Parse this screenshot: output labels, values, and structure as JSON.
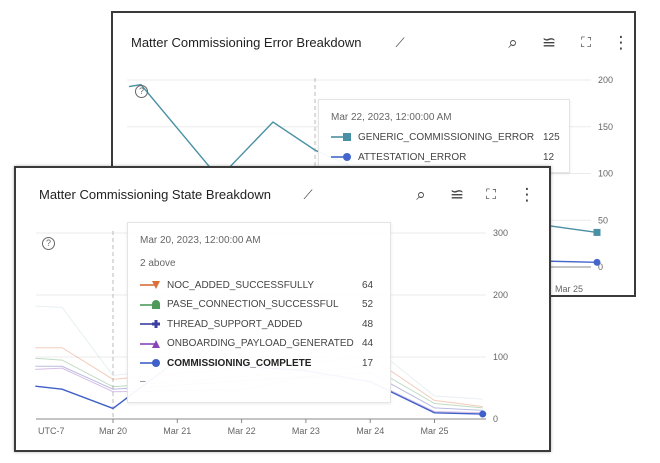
{
  "colors": {
    "generic": "#4a90a4",
    "attestation": "#4466cc",
    "noc": "#d9703a",
    "pase": "#4e9a5a",
    "thread": "#3a3fa0",
    "onboarding": "#8a44b8",
    "complete": "#3f60c8",
    "faint": "#b9d3d9"
  },
  "error_card": {
    "title": "Matter Commissioning Error Breakdown",
    "icons": [
      "chart-explore-icon",
      "reset-zoom-icon",
      "legend-icon",
      "fullscreen-icon",
      "more-vert-icon"
    ],
    "tooltip": {
      "date": "Mar 22, 2023, 12:00:00 AM",
      "rows": [
        {
          "label": "GENERIC_COMMISSIONING_ERROR",
          "value": "125",
          "marker": "square",
          "color": "#4a90a4"
        },
        {
          "label": "ATTESTATION_ERROR",
          "value": "12",
          "marker": "circle",
          "color": "#4466cc"
        }
      ]
    }
  },
  "state_card": {
    "title": "Matter Commissioning State Breakdown",
    "icons": [
      "chart-explore-icon",
      "reset-zoom-icon",
      "legend-icon",
      "fullscreen-icon",
      "more-vert-icon"
    ],
    "tooltip": {
      "date": "Mar 20, 2023, 12:00:00 AM",
      "above": "2 above",
      "more": "–",
      "rows": [
        {
          "label": "NOC_ADDED_SUCCESSFULLY",
          "value": "64",
          "marker": "triangle-down",
          "color": "#d9703a"
        },
        {
          "label": "PASE_CONNECTION_SUCCESSFUL",
          "value": "52",
          "marker": "pentagon",
          "color": "#4e9a5a"
        },
        {
          "label": "THREAD_SUPPORT_ADDED",
          "value": "48",
          "marker": "plus",
          "color": "#3a3fa0"
        },
        {
          "label": "ONBOARDING_PAYLOAD_GENERATED",
          "value": "44",
          "marker": "triangle",
          "color": "#8a44b8"
        },
        {
          "label": "COMMISSIONING_COMPLETE",
          "value": "17",
          "marker": "circle",
          "color": "#3f60c8",
          "bold": true
        }
      ]
    }
  },
  "chart_data": [
    {
      "type": "line",
      "title": "Matter Commissioning Error Breakdown",
      "ylim": [
        0,
        200
      ],
      "yticks": [
        0,
        50,
        100,
        150,
        200
      ],
      "xticks": [
        "Mar 25"
      ],
      "grid": true,
      "y_axis": "right",
      "hover": "2023-03-22T00:00",
      "series": [
        {
          "name": "GENERIC_COMMISSIONING_ERROR",
          "color": "#4a90a4",
          "marker": "square",
          "points": [
            [
              "2023-03-19T10:00",
              193
            ],
            [
              "2023-03-19T14:00",
              195
            ],
            [
              "2023-03-20T16:00",
              95
            ],
            [
              "2023-03-21T10:00",
              155
            ],
            [
              "2023-03-22T00:00",
              125
            ],
            [
              "2023-03-23T00:00",
              90
            ],
            [
              "2023-03-24T00:00",
              70
            ],
            [
              "2023-03-25T04:00",
              45
            ],
            [
              "2023-03-25T22:00",
              37
            ]
          ]
        },
        {
          "name": "ATTESTATION_ERROR",
          "color": "#4466cc",
          "marker": "circle",
          "points": [
            [
              "2023-03-19T10:00",
              15
            ],
            [
              "2023-03-22T00:00",
              12
            ],
            [
              "2023-03-25T22:00",
              5
            ]
          ]
        }
      ]
    },
    {
      "type": "line",
      "title": "Matter Commissioning State Breakdown",
      "ylim": [
        0,
        300
      ],
      "yticks": [
        0,
        100,
        200,
        300
      ],
      "xticks": [
        "UTC-7",
        "Mar 20",
        "Mar 21",
        "Mar 22",
        "Mar 23",
        "Mar 24",
        "Mar 25"
      ],
      "grid": true,
      "y_axis": "right",
      "hover": "2023-03-20T00:00",
      "series": [
        {
          "name": "",
          "color": "#b9d3d9",
          "faded": true,
          "points": [
            [
              "2023-03-18T19:00",
              182
            ],
            [
              "2023-03-19T05:00",
              180
            ],
            [
              "2023-03-20T00:00",
              70
            ],
            [
              "2023-03-24T00:00",
              120
            ],
            [
              "2023-03-25T00:00",
              37
            ],
            [
              "2023-03-25T18:00",
              32
            ]
          ]
        },
        {
          "name": "NOC_ADDED_SUCCESSFULLY",
          "color": "#d9703a",
          "faded": true,
          "points": [
            [
              "2023-03-18T19:00",
              115
            ],
            [
              "2023-03-19T05:00",
              115
            ],
            [
              "2023-03-20T00:00",
              64
            ],
            [
              "2023-03-24T00:00",
              100
            ],
            [
              "2023-03-25T00:00",
              30
            ],
            [
              "2023-03-25T18:00",
              20
            ]
          ]
        },
        {
          "name": "PASE_CONNECTION_SUCCESSFUL",
          "color": "#4e9a5a",
          "faded": true,
          "points": [
            [
              "2023-03-18T19:00",
              98
            ],
            [
              "2023-03-19T05:00",
              95
            ],
            [
              "2023-03-20T00:00",
              52
            ],
            [
              "2023-03-24T00:00",
              85
            ],
            [
              "2023-03-25T00:00",
              25
            ],
            [
              "2023-03-25T18:00",
              18
            ]
          ]
        },
        {
          "name": "THREAD_SUPPORT_ADDED",
          "color": "#3a3fa0",
          "faded": true,
          "points": [
            [
              "2023-03-18T19:00",
              85
            ],
            [
              "2023-03-19T05:00",
              85
            ],
            [
              "2023-03-20T00:00",
              48
            ],
            [
              "2023-03-24T00:00",
              75
            ],
            [
              "2023-03-25T00:00",
              18
            ],
            [
              "2023-03-25T18:00",
              14
            ]
          ]
        },
        {
          "name": "ONBOARDING_PAYLOAD_GENERATED",
          "color": "#8a44b8",
          "faded": true,
          "points": [
            [
              "2023-03-18T19:00",
              80
            ],
            [
              "2023-03-19T05:00",
              82
            ],
            [
              "2023-03-20T00:00",
              44
            ],
            [
              "2023-03-22T00:00",
              47
            ],
            [
              "2023-03-23T00:00",
              68
            ],
            [
              "2023-03-24T00:00",
              62
            ],
            [
              "2023-03-25T00:00",
              12
            ],
            [
              "2023-03-25T18:00",
              10
            ]
          ]
        },
        {
          "name": "COMMISSIONING_COMPLETE",
          "color": "#3f60c8",
          "marker": "circle",
          "points": [
            [
              "2023-03-18T19:00",
              53
            ],
            [
              "2023-03-19T05:00",
              48
            ],
            [
              "2023-03-20T00:00",
              17
            ],
            [
              "2023-03-21T00:00",
              95
            ],
            [
              "2023-03-22T00:00",
              85
            ],
            [
              "2023-03-23T00:00",
              78
            ],
            [
              "2023-03-24T00:00",
              60
            ],
            [
              "2023-03-25T00:00",
              10
            ],
            [
              "2023-03-25T18:00",
              8
            ]
          ]
        }
      ]
    }
  ]
}
